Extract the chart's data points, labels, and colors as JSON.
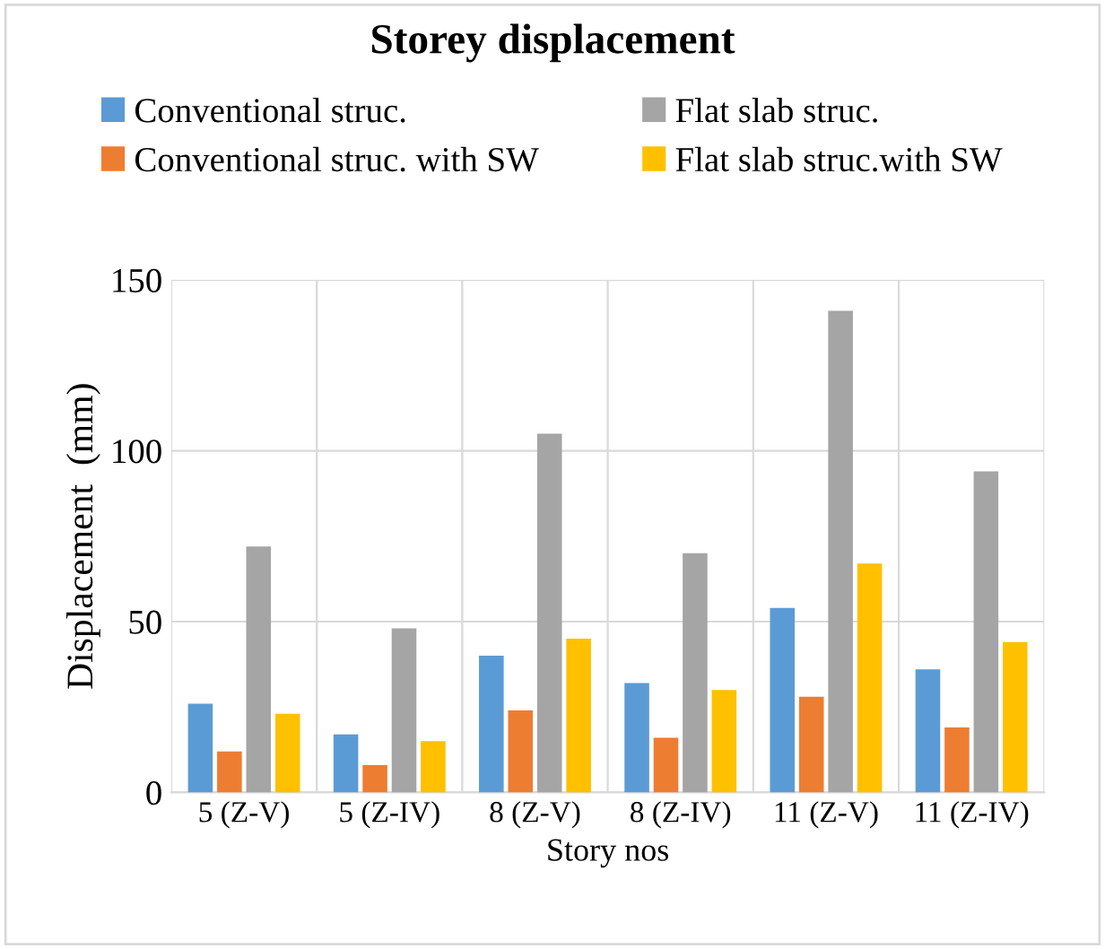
{
  "chart_data": {
    "type": "bar",
    "title": "Storey displacement",
    "xlabel": "Story nos",
    "ylabel": "Displacement  (mm)",
    "categories": [
      "5 (Z-V)",
      "5 (Z-IV)",
      "8 (Z-V)",
      "8 (Z-IV)",
      "11 (Z-V)",
      "11 (Z-IV)"
    ],
    "series": [
      {
        "name": "Conventional struc.",
        "color": "#5b9bd5",
        "values": [
          26,
          17,
          40,
          32,
          54,
          36
        ]
      },
      {
        "name": "Conventional struc. with SW",
        "color": "#ed7d31",
        "values": [
          12,
          8,
          24,
          16,
          28,
          19
        ]
      },
      {
        "name": "Flat slab struc.",
        "color": "#a5a5a5",
        "values": [
          72,
          48,
          105,
          70,
          141,
          94
        ]
      },
      {
        "name": "Flat slab struc.with SW",
        "color": "#ffc000",
        "values": [
          23,
          15,
          45,
          30,
          67,
          44
        ]
      }
    ],
    "ylim": [
      0,
      150
    ],
    "yticks": [
      0,
      50,
      100,
      150
    ],
    "grid": true,
    "legend": "top"
  }
}
